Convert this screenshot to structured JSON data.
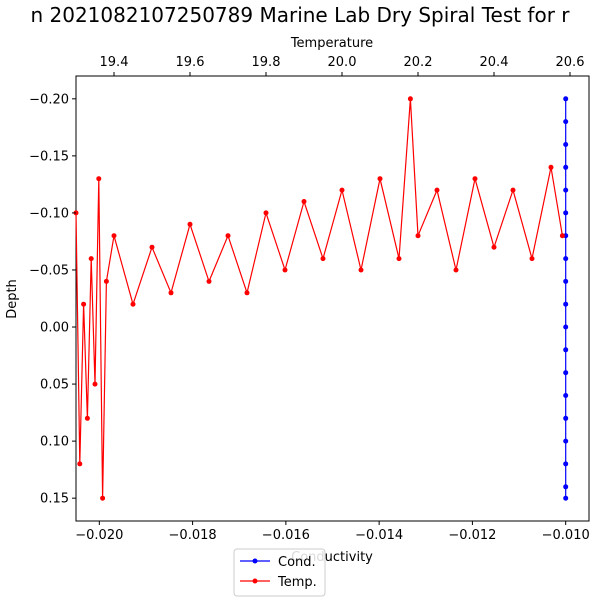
{
  "chart_data": {
    "type": "line",
    "title": "n 2021082107250789 Marine Lab Dry Spiral Test for r",
    "xlabel_bottom": "Conductivity",
    "xlabel_top": "Temperature",
    "ylabel": "Depth",
    "y_inverted": true,
    "ylim": [
      0.17,
      -0.22
    ],
    "xlim_bottom": [
      -0.0205,
      -0.0095
    ],
    "xlim_top": [
      19.3,
      20.65
    ],
    "x_ticks_bottom": [
      -0.02,
      -0.018,
      -0.016,
      -0.014,
      -0.012,
      -0.01
    ],
    "x_tick_labels_bottom": [
      "−0.020",
      "−0.018",
      "−0.016",
      "−0.014",
      "−0.012",
      "−0.010"
    ],
    "x_ticks_top": [
      19.4,
      19.6,
      19.8,
      20.0,
      20.2,
      20.4,
      20.6
    ],
    "x_tick_labels_top": [
      "19.4",
      "19.6",
      "19.8",
      "20.0",
      "20.2",
      "20.4",
      "20.6"
    ],
    "y_ticks": [
      -0.2,
      -0.15,
      -0.1,
      -0.05,
      0.0,
      0.05,
      0.1,
      0.15
    ],
    "y_tick_labels": [
      "−0.20",
      "−0.15",
      "−0.10",
      "−0.05",
      "0.00",
      "0.05",
      "0.10",
      "0.15"
    ],
    "legend_position": "bottom-center",
    "series": [
      {
        "name": "Cond.",
        "axis": "bottom",
        "color": "#0000ff",
        "marker": "circle",
        "points": [
          [
            -0.01,
            0.15
          ],
          [
            -0.01,
            0.14
          ],
          [
            -0.01,
            0.12
          ],
          [
            -0.01,
            0.1
          ],
          [
            -0.01,
            0.08
          ],
          [
            -0.01,
            0.06
          ],
          [
            -0.01,
            0.04
          ],
          [
            -0.01,
            0.02
          ],
          [
            -0.01,
            0.0
          ],
          [
            -0.01,
            -0.02
          ],
          [
            -0.01,
            -0.04
          ],
          [
            -0.01,
            -0.06
          ],
          [
            -0.01,
            -0.08
          ],
          [
            -0.01,
            -0.1
          ],
          [
            -0.01,
            -0.12
          ],
          [
            -0.01,
            -0.14
          ],
          [
            -0.01,
            -0.16
          ],
          [
            -0.01,
            -0.18
          ],
          [
            -0.01,
            -0.2
          ]
        ]
      },
      {
        "name": "Temp.",
        "axis": "top",
        "color": "#ff0000",
        "marker": "circle",
        "points": [
          [
            19.3,
            -0.1
          ],
          [
            19.31,
            0.12
          ],
          [
            19.32,
            -0.02
          ],
          [
            19.33,
            0.08
          ],
          [
            19.34,
            -0.06
          ],
          [
            19.35,
            0.05
          ],
          [
            19.36,
            -0.13
          ],
          [
            19.37,
            0.15
          ],
          [
            19.38,
            -0.04
          ],
          [
            19.4,
            -0.08
          ],
          [
            19.45,
            -0.02
          ],
          [
            19.5,
            -0.07
          ],
          [
            19.55,
            -0.03
          ],
          [
            19.6,
            -0.09
          ],
          [
            19.65,
            -0.04
          ],
          [
            19.7,
            -0.08
          ],
          [
            19.75,
            -0.03
          ],
          [
            19.8,
            -0.1
          ],
          [
            19.85,
            -0.05
          ],
          [
            19.9,
            -0.11
          ],
          [
            19.95,
            -0.06
          ],
          [
            20.0,
            -0.12
          ],
          [
            20.05,
            -0.05
          ],
          [
            20.1,
            -0.13
          ],
          [
            20.15,
            -0.06
          ],
          [
            20.18,
            -0.2
          ],
          [
            20.2,
            -0.08
          ],
          [
            20.25,
            -0.12
          ],
          [
            20.3,
            -0.05
          ],
          [
            20.35,
            -0.13
          ],
          [
            20.4,
            -0.07
          ],
          [
            20.45,
            -0.12
          ],
          [
            20.5,
            -0.06
          ],
          [
            20.55,
            -0.14
          ],
          [
            20.58,
            -0.08
          ]
        ]
      }
    ]
  }
}
